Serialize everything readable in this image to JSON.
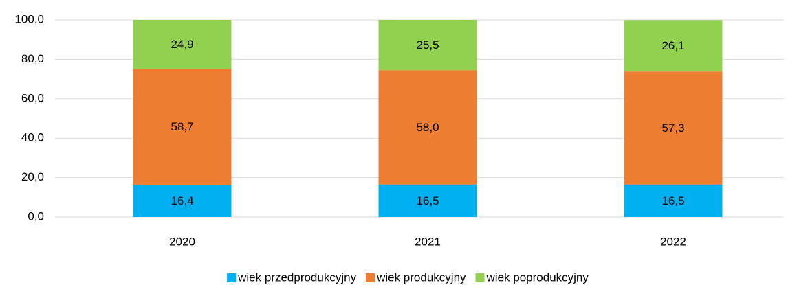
{
  "chart_data": {
    "type": "stacked_bar",
    "categories": [
      "2020",
      "2021",
      "2022"
    ],
    "series": [
      {
        "name": "wiek przedprodukcyjny",
        "color": "#00b0f0",
        "values": [
          16.4,
          16.5,
          16.5
        ],
        "value_labels": [
          "16,4",
          "16,5",
          "16,5"
        ]
      },
      {
        "name": "wiek produkcyjny",
        "color": "#ed7d31",
        "values": [
          58.7,
          58.0,
          57.3
        ],
        "value_labels": [
          "58,7",
          "58,0",
          "57,3"
        ]
      },
      {
        "name": "wiek poprodukcyjny",
        "color": "#92d050",
        "values": [
          24.9,
          25.5,
          26.1
        ],
        "value_labels": [
          "24,9",
          "25,5",
          "26,1"
        ]
      }
    ],
    "ylim": [
      0,
      100
    ],
    "yticks": [
      {
        "value": 0,
        "label": "0,0"
      },
      {
        "value": 20,
        "label": "20,0"
      },
      {
        "value": 40,
        "label": "40,0"
      },
      {
        "value": 60,
        "label": "60,0"
      },
      {
        "value": 80,
        "label": "80,0"
      },
      {
        "value": 100,
        "label": "100,0"
      }
    ],
    "grid": true,
    "legend": "bottom"
  }
}
